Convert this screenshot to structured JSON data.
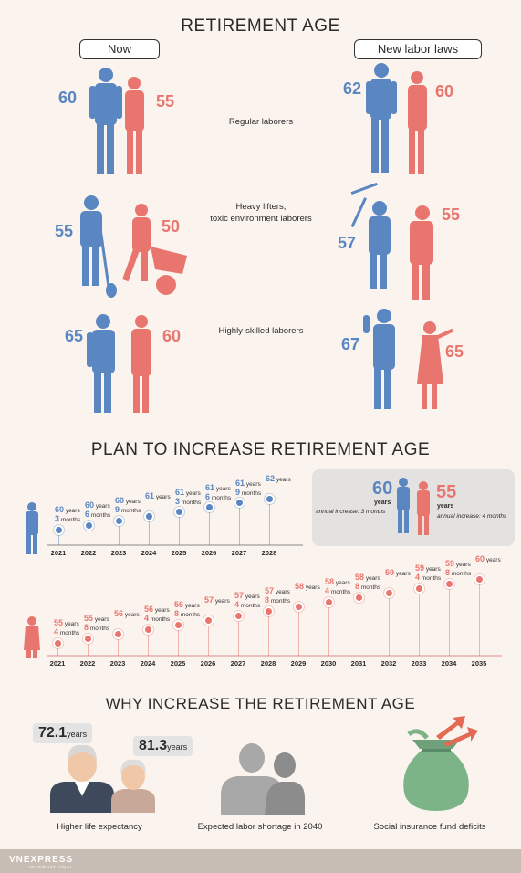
{
  "section1": {
    "title": "RETIREMENT AGE",
    "now_label": "Now",
    "new_label": "New labor laws",
    "rows": [
      {
        "category": "Regular laborers",
        "now_male": "60",
        "now_female": "55",
        "new_male": "62",
        "new_female": "60"
      },
      {
        "category": "Heavy lifters,\ntoxic environment laborers",
        "now_male": "55",
        "now_female": "50",
        "new_male": "57",
        "new_female": "55"
      },
      {
        "category": "Highly-skilled laborers",
        "now_male": "65",
        "now_female": "60",
        "new_male": "67",
        "new_female": "65"
      }
    ]
  },
  "section2": {
    "title": "PLAN TO INCREASE RETIREMENT AGE",
    "male_timeline": [
      {
        "year": "2021",
        "y": "60",
        "m": "3"
      },
      {
        "year": "2022",
        "y": "60",
        "m": "6"
      },
      {
        "year": "2023",
        "y": "60",
        "m": "9"
      },
      {
        "year": "2024",
        "y": "61",
        "m": ""
      },
      {
        "year": "2025",
        "y": "61",
        "m": "3"
      },
      {
        "year": "2026",
        "y": "61",
        "m": "6"
      },
      {
        "year": "2027",
        "y": "61",
        "m": "9"
      },
      {
        "year": "2028",
        "y": "62",
        "m": ""
      }
    ],
    "female_timeline": [
      {
        "year": "2021",
        "y": "55",
        "m": "4"
      },
      {
        "year": "2022",
        "y": "55",
        "m": "8"
      },
      {
        "year": "2023",
        "y": "56",
        "m": ""
      },
      {
        "year": "2024",
        "y": "56",
        "m": "4"
      },
      {
        "year": "2025",
        "y": "56",
        "m": "8"
      },
      {
        "year": "2026",
        "y": "57",
        "m": ""
      },
      {
        "year": "2027",
        "y": "57",
        "m": "4"
      },
      {
        "year": "2028",
        "y": "57",
        "m": "8"
      },
      {
        "year": "2029",
        "y": "58",
        "m": ""
      },
      {
        "year": "2030",
        "y": "58",
        "m": "4"
      },
      {
        "year": "2031",
        "y": "58",
        "m": "8"
      },
      {
        "year": "2032",
        "y": "59",
        "m": ""
      },
      {
        "year": "2033",
        "y": "59",
        "m": "4"
      },
      {
        "year": "2034",
        "y": "59",
        "m": "8"
      },
      {
        "year": "2035",
        "y": "60",
        "m": ""
      }
    ],
    "years_word": "years",
    "months_word": "months",
    "legend": {
      "male_age": "60",
      "female_age": "55",
      "years_word": "years",
      "male_increase": "annual increase: 3 months",
      "female_increase": "annual increase: 4 months"
    }
  },
  "section3": {
    "title": "WHY INCREASE THE RETIREMENT AGE",
    "male_life": "72.1",
    "female_life": "81.3",
    "years_word": "years",
    "labels": [
      "Higher life expectancy",
      "Expected labor shortage in 2040",
      "Social insurance fund deficits"
    ]
  },
  "colors": {
    "blue": "#5a86c2",
    "red": "#e8766f",
    "bg": "#fbf3ee"
  },
  "footer": {
    "logo_main": "VNEXPRESS",
    "logo_sub": "INTERNATIONAL"
  }
}
